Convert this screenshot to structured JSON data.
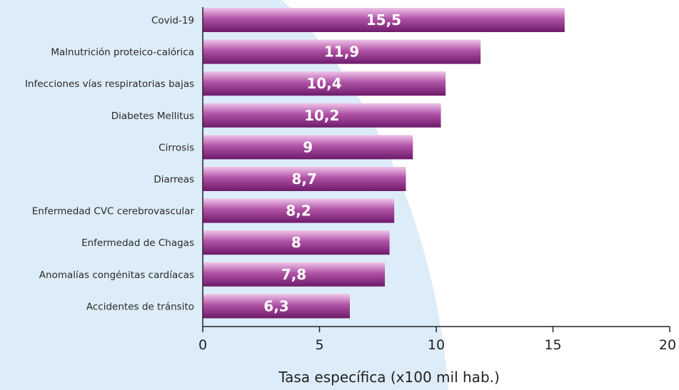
{
  "chart_data": {
    "type": "bar",
    "orientation": "horizontal",
    "categories": [
      "Covid-19",
      "Malnutrición proteico-calórica",
      "Infecciones vías respiratorias bajas",
      "Diabetes Mellitus",
      "Cirrosis",
      "Diarreas",
      "Enfermedad CVC cerebrovascular",
      "Enfermedad de Chagas",
      "Anomalías congénitas cardíacas",
      "Accidentes de tránsito"
    ],
    "values": [
      15.5,
      11.9,
      10.4,
      10.2,
      9,
      8.7,
      8.2,
      8,
      7.8,
      6.3
    ],
    "value_labels": [
      "15,5",
      "11,9",
      "10,4",
      "10,2",
      "9",
      "8,7",
      "8,2",
      "8",
      "7,8",
      "6,3"
    ],
    "xlabel": "Tasa específica (x100 mil hab.)",
    "ylabel": "",
    "xlim": [
      0,
      20
    ],
    "xticks": [
      0,
      5,
      10,
      15,
      20
    ],
    "grid": false,
    "colors": {
      "bar_dark": "#6e1a6a",
      "bar_mid": "#b052a6",
      "bar_light": "#f0c4ea",
      "background_shape": "#dcecf8",
      "axis": "#222222"
    }
  }
}
